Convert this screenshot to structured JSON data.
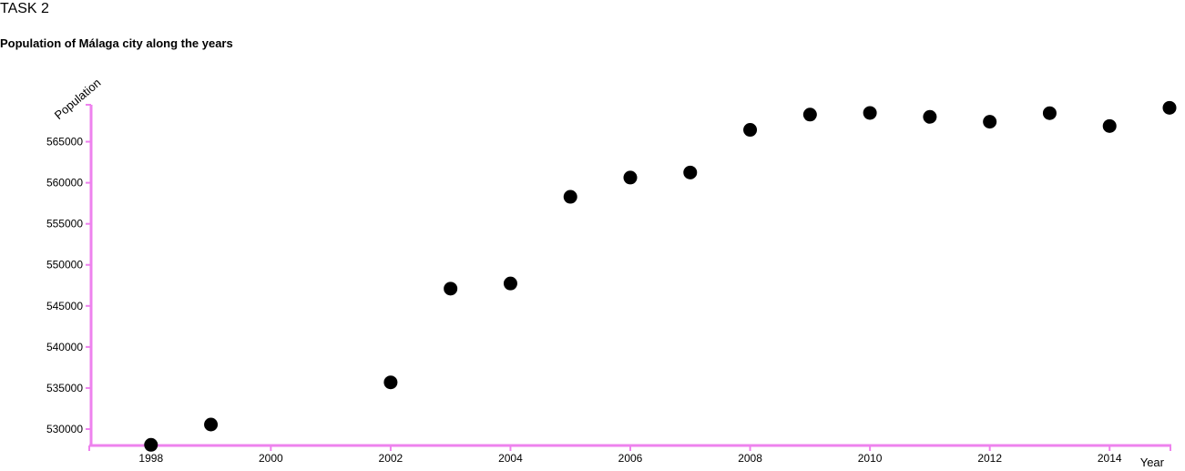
{
  "page": {
    "heading": "TASK 2"
  },
  "chart_data": {
    "type": "scatter",
    "title": "Population of Málaga city along the years",
    "xlabel": "Year",
    "ylabel": "Population",
    "xlim": [
      1997,
      2015
    ],
    "ylim": [
      528000,
      569500
    ],
    "x_ticks": [
      1998,
      2000,
      2002,
      2004,
      2006,
      2008,
      2010,
      2012,
      2014
    ],
    "y_ticks": [
      530000,
      535000,
      540000,
      545000,
      550000,
      555000,
      560000,
      565000
    ],
    "grid": false,
    "legend": "none",
    "series": [
      {
        "x": [
          1998,
          1999,
          2002,
          2003,
          2004,
          2005,
          2006,
          2007,
          2008,
          2009,
          2010,
          2011,
          2012,
          2013,
          2014,
          2015
        ],
        "y": [
          528079,
          530553,
          535686,
          547105,
          547731,
          558287,
          560631,
          561250,
          566447,
          568305,
          568507,
          568030,
          567433,
          568479,
          566913,
          569130
        ]
      }
    ],
    "colors": {
      "axis": "#ee82ee",
      "point": "#000000"
    }
  }
}
